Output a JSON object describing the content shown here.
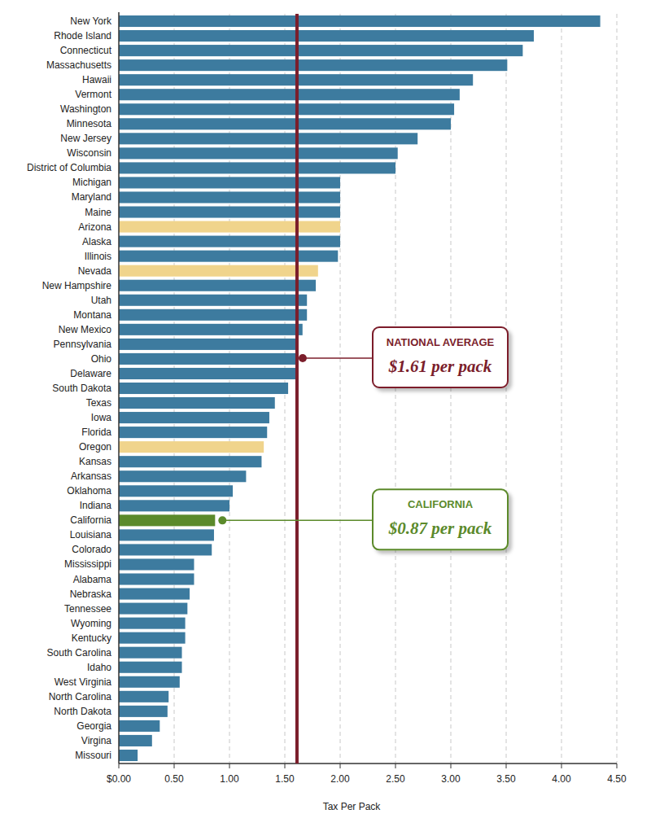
{
  "chart_data": {
    "type": "bar",
    "orientation": "horizontal",
    "grid": true,
    "x_label": "Tax Per Pack",
    "categories": [
      "New York",
      "Rhode Island",
      "Connecticut",
      "Massachusetts",
      "Hawaii",
      "Vermont",
      "Washington",
      "Minnesota",
      "New Jersey",
      "Wisconsin",
      "District of Columbia",
      "Michigan",
      "Maryland",
      "Maine",
      "Arizona",
      "Alaska",
      "Illinois",
      "Nevada",
      "New Hampshire",
      "Utah",
      "Montana",
      "New Mexico",
      "Pennsylvania",
      "Ohio",
      "Delaware",
      "South Dakota",
      "Texas",
      "Iowa",
      "Florida",
      "Oregon",
      "Kansas",
      "Arkansas",
      "Oklahoma",
      "Indiana",
      "California",
      "Louisiana",
      "Colorado",
      "Mississippi",
      "Alabama",
      "Nebraska",
      "Tennessee",
      "Wyoming",
      "Kentucky",
      "South Carolina",
      "Idaho",
      "West Virginia",
      "North Carolina",
      "North Dakota",
      "Georgia",
      "Virgina",
      "Missouri"
    ],
    "values": [
      4.35,
      3.75,
      3.65,
      3.51,
      3.2,
      3.08,
      3.03,
      3.0,
      2.7,
      2.52,
      2.5,
      2.0,
      2.0,
      2.0,
      2.0,
      2.0,
      1.98,
      1.8,
      1.78,
      1.7,
      1.7,
      1.66,
      1.6,
      1.6,
      1.6,
      1.53,
      1.41,
      1.36,
      1.34,
      1.31,
      1.29,
      1.15,
      1.03,
      1.0,
      0.87,
      0.86,
      0.84,
      0.68,
      0.68,
      0.64,
      0.62,
      0.6,
      0.6,
      0.57,
      0.57,
      0.55,
      0.45,
      0.44,
      0.37,
      0.3,
      0.17
    ],
    "colors": [
      "#3d7b9f",
      "#3d7b9f",
      "#3d7b9f",
      "#3d7b9f",
      "#3d7b9f",
      "#3d7b9f",
      "#3d7b9f",
      "#3d7b9f",
      "#3d7b9f",
      "#3d7b9f",
      "#3d7b9f",
      "#3d7b9f",
      "#3d7b9f",
      "#3d7b9f",
      "#f0d48c",
      "#3d7b9f",
      "#3d7b9f",
      "#f0d48c",
      "#3d7b9f",
      "#3d7b9f",
      "#3d7b9f",
      "#3d7b9f",
      "#3d7b9f",
      "#3d7b9f",
      "#3d7b9f",
      "#3d7b9f",
      "#3d7b9f",
      "#3d7b9f",
      "#3d7b9f",
      "#f0d48c",
      "#3d7b9f",
      "#3d7b9f",
      "#3d7b9f",
      "#3d7b9f",
      "#5b8a2b",
      "#3d7b9f",
      "#3d7b9f",
      "#3d7b9f",
      "#3d7b9f",
      "#3d7b9f",
      "#3d7b9f",
      "#3d7b9f",
      "#3d7b9f",
      "#3d7b9f",
      "#3d7b9f",
      "#3d7b9f",
      "#3d7b9f",
      "#3d7b9f",
      "#3d7b9f",
      "#3d7b9f",
      "#3d7b9f"
    ],
    "xlim": [
      0,
      4.5
    ],
    "xticks": [
      {
        "value": 0,
        "label": "$0.00"
      },
      {
        "value": 0.5,
        "label": "0.50"
      },
      {
        "value": 1,
        "label": "1.00"
      },
      {
        "value": 1.5,
        "label": "1.50"
      },
      {
        "value": 2,
        "label": "2.00"
      },
      {
        "value": 2.5,
        "label": "2.50"
      },
      {
        "value": 3,
        "label": "3.00"
      },
      {
        "value": 3.5,
        "label": "3.50"
      },
      {
        "value": 4,
        "label": "4.00"
      },
      {
        "value": 4.5,
        "label": "4.50"
      }
    ],
    "annotations": [
      {
        "text": "NATIONAL AVERAGE",
        "label": "$1.61 per pack",
        "value": 1.61,
        "color": "#7b1e2b"
      },
      {
        "text": "CALIFORNIA",
        "label": "$0.87 per pack",
        "category": "California",
        "color": "#5b8a2b"
      }
    ]
  }
}
